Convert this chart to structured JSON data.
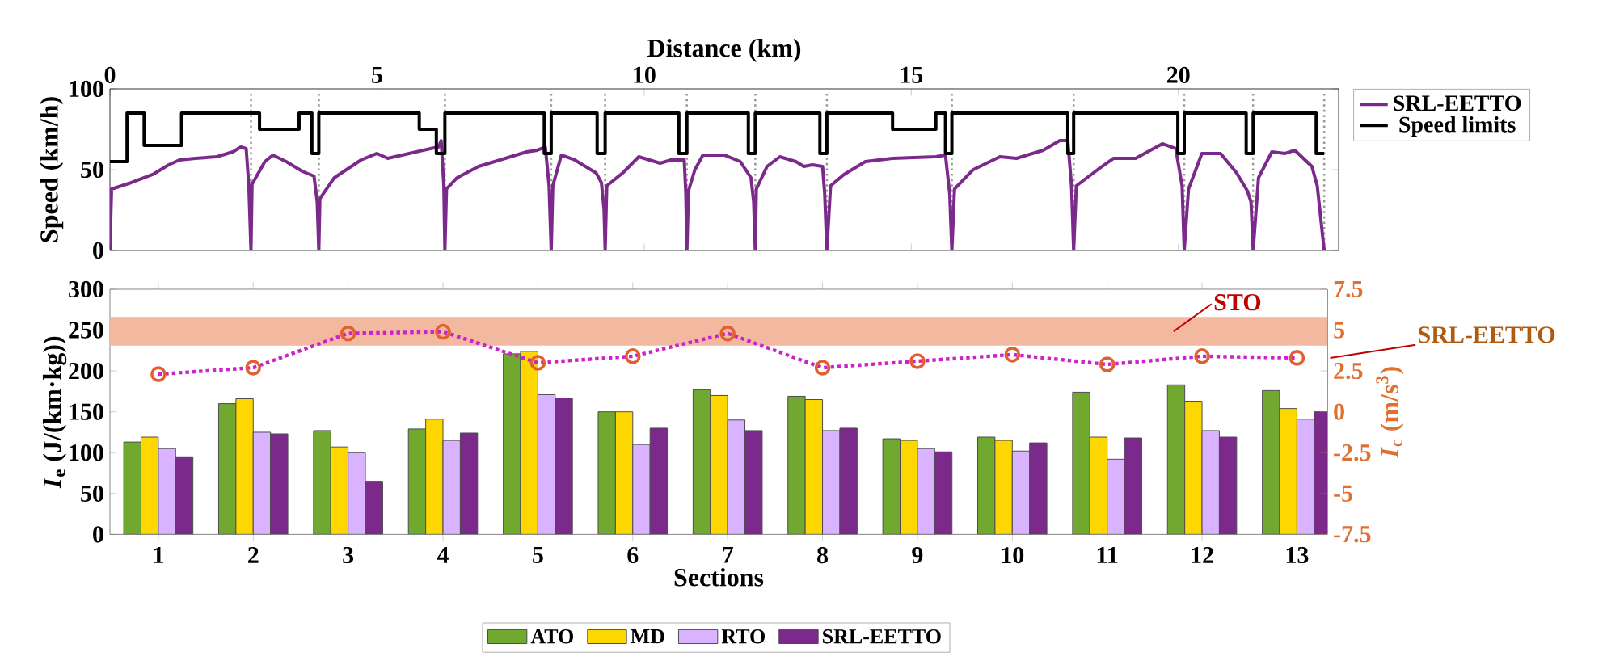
{
  "chart_data": [
    {
      "type": "line",
      "xlabel": "Distance (km)",
      "ylabel": "Speed (km/h)",
      "xlim": [
        0,
        23
      ],
      "xticks": [
        0,
        5,
        10,
        15,
        20
      ],
      "ylim": [
        0,
        100
      ],
      "yticks": [
        0,
        50,
        100
      ],
      "legend": "right",
      "grid": false,
      "series": [
        {
          "name": "SRL-EETTO",
          "type": "line",
          "color": "#7b2a8c",
          "x": [
            0,
            0.03,
            0.4,
            0.8,
            1.1,
            1.3,
            1.6,
            2.0,
            2.3,
            2.45,
            2.55,
            2.6,
            2.64,
            2.66,
            2.9,
            3.05,
            3.3,
            3.6,
            3.82,
            3.88,
            3.91,
            3.93,
            4.2,
            4.7,
            5.0,
            5.2,
            5.6,
            6.0,
            6.15,
            6.2,
            6.25,
            6.27,
            6.3,
            6.5,
            6.9,
            7.3,
            7.6,
            7.8,
            8.0,
            8.15,
            8.22,
            8.26,
            8.29,
            8.45,
            8.7,
            9.1,
            9.2,
            9.25,
            9.27,
            9.3,
            9.6,
            9.9,
            10.3,
            10.5,
            10.75,
            10.78,
            10.8,
            10.83,
            10.95,
            11.1,
            11.5,
            11.8,
            12.0,
            12.05,
            12.08,
            12.1,
            12.3,
            12.54,
            12.84,
            12.99,
            13.15,
            13.34,
            13.38,
            13.42,
            13.49,
            13.74,
            14.14,
            14.65,
            15.46,
            15.64,
            15.72,
            15.76,
            15.81,
            16.16,
            16.66,
            16.97,
            17.47,
            17.78,
            17.93,
            18.0,
            18.04,
            18.09,
            18.49,
            18.79,
            19.2,
            19.7,
            19.95,
            20.07,
            20.11,
            20.19,
            20.44,
            20.79,
            21.09,
            21.29,
            21.36,
            21.4,
            21.5,
            21.75,
            22.0,
            22.18,
            22.5,
            22.6,
            22.73
          ],
          "values": [
            0,
            38,
            42,
            47,
            53,
            56,
            57,
            58,
            61,
            64,
            63,
            40,
            0,
            41,
            55,
            59,
            55,
            49,
            46,
            30,
            0,
            32,
            45,
            56,
            60,
            57,
            60,
            63,
            64,
            68,
            40,
            0,
            38,
            45,
            52,
            56,
            59,
            61,
            62,
            64,
            40,
            0,
            40,
            59,
            56,
            48,
            42,
            25,
            0,
            40,
            48,
            58,
            54,
            56,
            56,
            35,
            0,
            37,
            50,
            59,
            59,
            55,
            45,
            30,
            0,
            38,
            52,
            58,
            55,
            52,
            53,
            52,
            35,
            0,
            40,
            47,
            55,
            57,
            58,
            59,
            35,
            0,
            38,
            50,
            58,
            57,
            62,
            68,
            68,
            40,
            0,
            40,
            50,
            57,
            57,
            66,
            63,
            40,
            0,
            38,
            60,
            60,
            48,
            37,
            30,
            0,
            45,
            61,
            60,
            62,
            52,
            40,
            0
          ]
        },
        {
          "name": "Speed limits",
          "type": "step",
          "color": "#000000",
          "x": [
            0,
            0.32,
            0.64,
            1.34,
            2.8,
            3.54,
            3.78,
            3.91,
            5.79,
            6.11,
            6.27,
            8.13,
            8.26,
            9.12,
            9.27,
            10.65,
            10.8,
            11.95,
            12.08,
            13.29,
            13.42,
            14.65,
            15.46,
            15.64,
            15.76,
            17.93,
            18.04,
            19.99,
            20.11,
            21.27,
            21.4,
            22.58,
            22.73
          ],
          "values": [
            55,
            85,
            65,
            85,
            75,
            85,
            60,
            85,
            75,
            60,
            85,
            60,
            85,
            60,
            85,
            60,
            85,
            60,
            85,
            60,
            85,
            75,
            85,
            60,
            85,
            60,
            85,
            60,
            85,
            60,
            85,
            60,
            60
          ]
        }
      ],
      "ref_lines": [
        {
          "axis": "x",
          "value": 2.64,
          "color": "#999999",
          "line_style": "dotted"
        },
        {
          "axis": "x",
          "value": 3.91,
          "color": "#999999",
          "line_style": "dotted"
        },
        {
          "axis": "x",
          "value": 6.27,
          "color": "#999999",
          "line_style": "dotted"
        },
        {
          "axis": "x",
          "value": 8.26,
          "color": "#999999",
          "line_style": "dotted"
        },
        {
          "axis": "x",
          "value": 9.27,
          "color": "#999999",
          "line_style": "dotted"
        },
        {
          "axis": "x",
          "value": 10.8,
          "color": "#999999",
          "line_style": "dotted"
        },
        {
          "axis": "x",
          "value": 12.08,
          "color": "#999999",
          "line_style": "dotted"
        },
        {
          "axis": "x",
          "value": 13.42,
          "color": "#999999",
          "line_style": "dotted"
        },
        {
          "axis": "x",
          "value": 15.76,
          "color": "#999999",
          "line_style": "dotted"
        },
        {
          "axis": "x",
          "value": 18.04,
          "color": "#999999",
          "line_style": "dotted"
        },
        {
          "axis": "x",
          "value": 20.11,
          "color": "#999999",
          "line_style": "dotted"
        },
        {
          "axis": "x",
          "value": 21.4,
          "color": "#999999",
          "line_style": "dotted"
        },
        {
          "axis": "x",
          "value": 22.73,
          "color": "#999999",
          "line_style": "dotted"
        }
      ]
    },
    {
      "type": "bar",
      "xlabel": "Sections",
      "ylabel": "*I*$_{e}$ (J/(km·kg))",
      "y2label": "*I*$_{c}$ (m/s$^{3}$)",
      "ylim": [
        0,
        300
      ],
      "yticks": [
        0,
        50,
        100,
        150,
        200,
        250,
        300
      ],
      "y2lim": [
        -7.5,
        7.5
      ],
      "y2ticks": [
        -7.5,
        -5,
        -2.5,
        0,
        2.5,
        5,
        7.5
      ],
      "legend": "bottom",
      "grid": false,
      "categories": [
        "1",
        "2",
        "3",
        "4",
        "5",
        "6",
        "7",
        "8",
        "9",
        "10",
        "11",
        "12",
        "13"
      ],
      "series": [
        {
          "name": "ATO",
          "type": "bar",
          "color": "#70a830",
          "values": [
            113,
            160,
            127,
            129,
            221,
            150,
            177,
            169,
            117,
            119,
            174,
            183,
            176
          ]
        },
        {
          "name": "MD",
          "type": "bar",
          "color": "#ffd700",
          "values": [
            119,
            166,
            107,
            141,
            224,
            150,
            170,
            165,
            115,
            115,
            119,
            163,
            154
          ]
        },
        {
          "name": "RTO",
          "type": "bar",
          "color": "#d9b3ff",
          "values": [
            105,
            125,
            100,
            115,
            171,
            110,
            140,
            127,
            105,
            102,
            92,
            127,
            141
          ]
        },
        {
          "name": "SRL-EETTO",
          "type": "bar",
          "color": "#7b2a8c",
          "values": [
            95,
            123,
            65,
            124,
            167,
            130,
            127,
            130,
            101,
            112,
            118,
            119,
            150
          ]
        },
        {
          "type": "line",
          "axis": "y2",
          "color": "#cc22cc",
          "line_style": "dotted",
          "marker": "circle",
          "colors": [
            "#e06030",
            "#e06030",
            "#e06030",
            "#e06030",
            "#e06030",
            "#e06030",
            "#e06030",
            "#e06030",
            "#e06030",
            "#e06030",
            "#e06030",
            "#e06030",
            "#e06030"
          ],
          "values": [
            2.3,
            2.7,
            4.8,
            4.9,
            3.0,
            3.4,
            4.8,
            2.7,
            3.1,
            3.5,
            2.9,
            3.4,
            3.3
          ]
        }
      ],
      "annotations": [
        "SRL-EETTO"
      ],
      "bands": [
        {
          "axis": "y",
          "from": 231,
          "to": 266,
          "label": "STO",
          "color": "#f2b8a0"
        }
      ]
    }
  ]
}
